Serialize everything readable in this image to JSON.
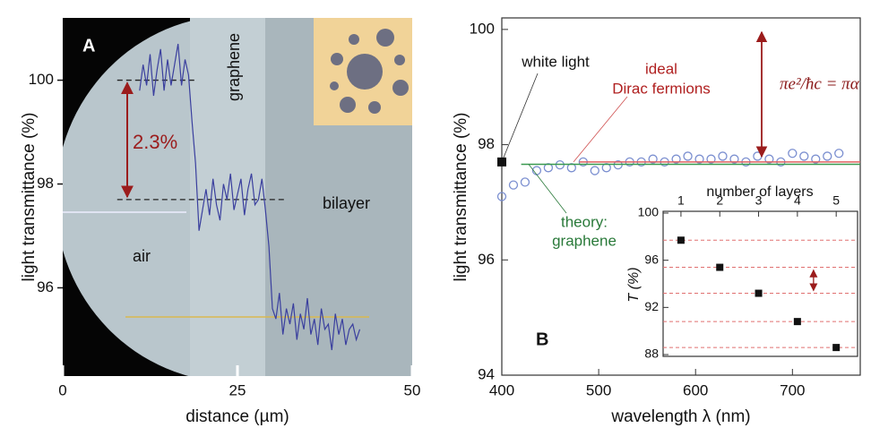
{
  "chart_data": [
    {
      "type": "line",
      "panel_label": "A",
      "xlabel": "distance (µm)",
      "ylabel": "light transmittance (%)",
      "xlim": [
        0,
        50
      ],
      "xticks": [
        0,
        25,
        50
      ],
      "ylim": [
        94.3,
        101.2
      ],
      "yticks": [
        96,
        98,
        100
      ],
      "color": "#3a3f9e",
      "x": [
        11,
        11.5,
        12,
        12.5,
        13,
        13.5,
        14,
        14.5,
        15,
        15.5,
        16,
        16.5,
        17,
        17.5,
        18,
        18.5,
        19,
        19.5,
        20,
        20.5,
        21,
        21.5,
        22,
        22.5,
        23,
        23.5,
        24,
        24.5,
        25,
        25.5,
        26,
        26.5,
        27,
        27.5,
        28,
        28.5,
        29,
        29.5,
        30,
        30.5,
        31,
        31.5,
        32,
        32.5,
        33,
        33.5,
        34,
        34.5,
        35,
        35.5,
        36,
        36.5,
        37,
        37.5,
        38,
        38.5,
        39,
        39.5,
        40,
        40.5,
        41,
        41.5,
        42,
        42.5
      ],
      "values": [
        99.8,
        100.3,
        99.9,
        100.5,
        99.7,
        100.2,
        100.6,
        99.8,
        100.4,
        99.9,
        100.3,
        100.7,
        99.9,
        100.4,
        100.1,
        99.2,
        98.4,
        97.1,
        97.5,
        97.9,
        97.4,
        98.1,
        97.6,
        97.3,
        98.0,
        97.7,
        98.2,
        97.5,
        97.8,
        98.1,
        97.4,
        97.9,
        98.2,
        97.6,
        97.7,
        98.1,
        97.5,
        96.8,
        95.6,
        95.4,
        95.9,
        95.1,
        95.6,
        95.3,
        95.7,
        95.0,
        95.5,
        95.2,
        95.8,
        95.1,
        95.4,
        94.9,
        95.6,
        95.2,
        95.3,
        94.8,
        95.5,
        95.1,
        95.4,
        94.9,
        95.2,
        95.3,
        95.0,
        95.2
      ],
      "reference_levels": [
        100,
        97.7
      ],
      "annotations": [
        "2.3%",
        "graphene",
        "bilayer",
        "air"
      ]
    },
    {
      "type": "scatter",
      "panel_label": "B",
      "xlabel": "wavelength λ (nm)",
      "ylabel": "light transmittance (%)",
      "xlim": [
        400,
        770
      ],
      "xticks": [
        400,
        500,
        600,
        700
      ],
      "ylim": [
        94,
        100.2
      ],
      "yticks": [
        94,
        96,
        98,
        100
      ],
      "color": "#7b8fd0",
      "x": [
        400,
        412,
        424,
        436,
        448,
        460,
        472,
        484,
        496,
        508,
        520,
        532,
        544,
        556,
        568,
        580,
        592,
        604,
        616,
        628,
        640,
        652,
        664,
        676,
        688,
        700,
        712,
        724,
        736,
        748
      ],
      "values": [
        97.1,
        97.3,
        97.35,
        97.55,
        97.6,
        97.65,
        97.6,
        97.7,
        97.55,
        97.6,
        97.65,
        97.7,
        97.7,
        97.75,
        97.7,
        97.75,
        97.8,
        97.75,
        97.75,
        97.8,
        97.75,
        97.7,
        97.8,
        97.75,
        97.7,
        97.85,
        97.8,
        97.75,
        97.8,
        97.85
      ],
      "white_light": {
        "x": 400,
        "value": 97.7,
        "label": "white light"
      },
      "reference_lines": [
        {
          "color": "#e06060",
          "x": [
            480,
            770
          ],
          "values": [
            97.7,
            97.7
          ],
          "label": [
            "ideal",
            "Dirac fermions"
          ],
          "label_color": "#b02020"
        },
        {
          "color": "#3a9a50",
          "x": [
            420,
            770
          ],
          "values": [
            97.66,
            97.66
          ],
          "label": [
            "theory:",
            "graphene"
          ],
          "label_color": "#2a7a3a"
        }
      ],
      "formula": "πe²/ħc = πα"
    },
    {
      "type": "scatter",
      "title": "number of layers",
      "ylabel": "T (%)",
      "xlim": [
        0.54,
        5.55
      ],
      "xticks": [
        1,
        2,
        3,
        4,
        5
      ],
      "ylim": [
        87.85,
        100.15
      ],
      "yticks": [
        88,
        92,
        96,
        100
      ],
      "x": [
        1,
        2,
        3,
        4,
        5
      ],
      "values": [
        97.7,
        95.4,
        93.2,
        90.8,
        88.6
      ],
      "color": "#111111"
    }
  ]
}
